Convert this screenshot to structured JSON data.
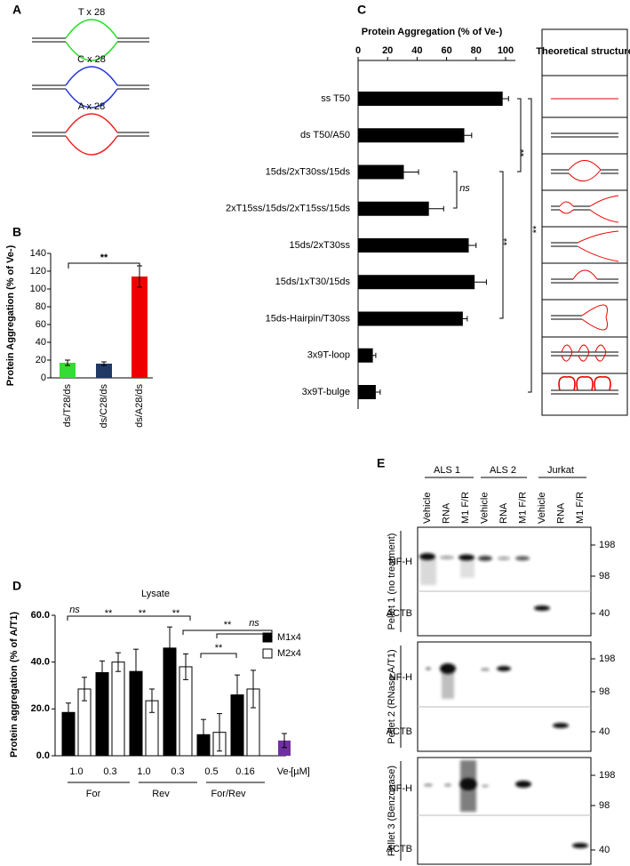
{
  "panel_labels": [
    "A",
    "B",
    "C",
    "D",
    "E"
  ],
  "panel_a": {
    "loops": [
      {
        "label": "T x 28",
        "color": "#22dd22"
      },
      {
        "label": "C x 28",
        "color": "#2233dd"
      },
      {
        "label": "A x 28",
        "color": "#ee2222"
      }
    ]
  },
  "chart_data": [
    {
      "type": "bar",
      "y_label": "Protein Aggregation (% of Ve-)",
      "categories": [
        "ds/T28/ds",
        "ds/C28/ds",
        "ds/A28/ds"
      ],
      "values": [
        17,
        16,
        114
      ],
      "errors": [
        3,
        2,
        12
      ],
      "colors": [
        "#33dd33",
        "#1f3864",
        "#ee0000"
      ],
      "ylim": [
        0,
        140
      ],
      "yticks": [
        0,
        20,
        40,
        60,
        80,
        100,
        120,
        140
      ],
      "annotations": [
        "**"
      ]
    },
    {
      "type": "hbar",
      "x_label": "Protein Aggregation (% of Ve-)",
      "categories": [
        "ss T50",
        "ds T50/A50",
        "15ds/2xT30ss/15ds",
        "2xT15ss/15ds/2xT15ss/15ds",
        "15ds/2xT30ss",
        "15ds/1xT30/15ds",
        "15ds-Hairpin/T30ss",
        "3x9T-loop",
        "3x9T-bulge"
      ],
      "values": [
        98,
        72,
        31,
        48,
        75,
        79,
        71,
        10,
        12
      ],
      "errors": [
        4,
        5,
        10,
        10,
        5,
        8,
        3,
        2,
        3
      ],
      "color": "#000000",
      "xlim": [
        0,
        100
      ],
      "xticks": [
        0,
        20,
        40,
        60,
        80,
        100
      ],
      "annotations": [
        "ns",
        "**",
        "**",
        "**"
      ],
      "structure_header": "Theoretical structure"
    },
    {
      "type": "grouped_bar",
      "title": "Lysate",
      "y_label": "Protein aggregation (% of A/T1)",
      "categories": [
        "1.0",
        "0.3",
        "1.0",
        "0.3",
        "0.5",
        "0.16",
        "Ve-"
      ],
      "unit": "[µM]",
      "group_labels": [
        "For",
        "Rev",
        "For/Rev"
      ],
      "series": [
        {
          "name": "M1x4",
          "color": "#000000",
          "values": [
            18.5,
            35.5,
            36,
            46,
            9,
            26,
            null
          ],
          "errors": [
            4,
            5,
            9.5,
            9,
            6.5,
            8.5,
            null
          ]
        },
        {
          "name": "M2x4",
          "color": "#ffffff",
          "values": [
            28.5,
            40,
            23.5,
            38,
            10,
            28.5,
            null
          ],
          "errors": [
            5,
            4,
            5,
            5.5,
            8,
            8,
            null
          ]
        }
      ],
      "control": {
        "value": 6.5,
        "error": 3,
        "color": "#7030a0"
      },
      "ylim": [
        0,
        60
      ],
      "yticks": [
        {
          "value": 0,
          "label": "0.0"
        },
        {
          "value": 20,
          "label": "20.0"
        },
        {
          "value": 40,
          "label": "40.0"
        },
        {
          "value": 60,
          "label": "60.0"
        }
      ],
      "annotations": [
        "ns",
        "**",
        "**",
        "**",
        "**",
        "**",
        "ns"
      ]
    }
  ],
  "panel_e": {
    "groups": [
      "ALS 1",
      "ALS 2",
      "Jurkat"
    ],
    "lanes": [
      "Vehicle",
      "RNA",
      "M1 F/R",
      "Vehicle",
      "RNA",
      "M1 F/R",
      "Vehicle",
      "RNA",
      "M1 F/R"
    ],
    "blots": [
      {
        "pellet": "Pellet 1 (no treatment)",
        "bands": [
          "NF-H",
          "ACTB"
        ],
        "markers": [
          "198",
          "98",
          "40"
        ]
      },
      {
        "pellet": "Pellet 2 (RNase A/T1)",
        "bands": [
          "NF-H",
          "ACTB"
        ],
        "markers": [
          "198",
          "98",
          "40"
        ]
      },
      {
        "pellet": "Pellet 3 (Benzonase)",
        "bands": [
          "NF-H",
          "ACTB"
        ],
        "markers": [
          "198",
          "98",
          "40"
        ]
      }
    ]
  }
}
